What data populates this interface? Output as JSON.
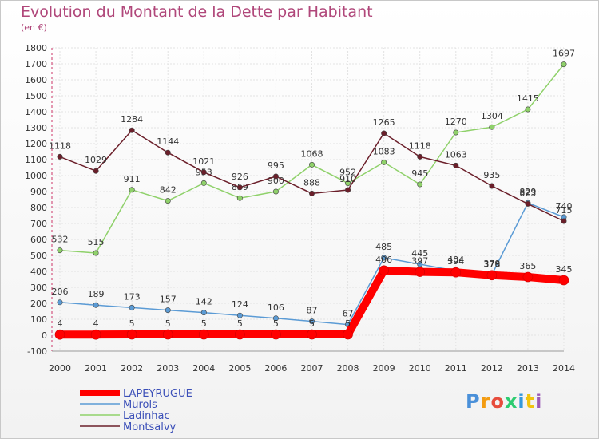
{
  "chart_data": {
    "type": "line",
    "title": "Evolution du Montant de la Dette par Habitant",
    "subtitle": "(en €)",
    "x": [
      "2000",
      "2001",
      "2002",
      "2003",
      "2004",
      "2005",
      "2006",
      "2007",
      "2008",
      "2009",
      "2010",
      "2011",
      "2012",
      "2013",
      "2014"
    ],
    "ylim": [
      -100,
      1800
    ],
    "yticks": [
      -100,
      0,
      100,
      200,
      300,
      400,
      500,
      600,
      700,
      800,
      900,
      1000,
      1100,
      1200,
      1300,
      1400,
      1500,
      1600,
      1700,
      1800
    ],
    "grid": true,
    "legend_position": "bottom-left",
    "series": [
      {
        "name": "Murols",
        "color": "#5b9bd5",
        "values": [
          206,
          189,
          173,
          157,
          142,
          124,
          106,
          87,
          67,
          485,
          445,
          404,
          379,
          829,
          740
        ]
      },
      {
        "name": "Ladinhac",
        "color": "#8fd16a",
        "values": [
          532,
          515,
          911,
          842,
          953,
          859,
          900,
          1068,
          952,
          1083,
          945,
          1270,
          1304,
          1415,
          1697
        ]
      },
      {
        "name": "Montsalvy",
        "color": "#6b1f2a",
        "values": [
          1118,
          1029,
          1284,
          1144,
          1021,
          926,
          995,
          888,
          910,
          1265,
          1118,
          1063,
          935,
          823,
          715
        ]
      },
      {
        "name": "LAPEYRUGUE",
        "color": "#ff0000",
        "values": [
          4,
          4,
          5,
          5,
          5,
          5,
          5,
          5,
          5,
          406,
          397,
          394,
          376,
          365,
          345
        ]
      }
    ]
  },
  "logo": {
    "letters": [
      "P",
      "r",
      "o",
      "x",
      "i",
      "t",
      "i"
    ],
    "colors": [
      "#4a90d9",
      "#f39c12",
      "#e74c3c",
      "#2ecc71",
      "#3498db",
      "#f1c40f",
      "#9b59b6"
    ]
  }
}
